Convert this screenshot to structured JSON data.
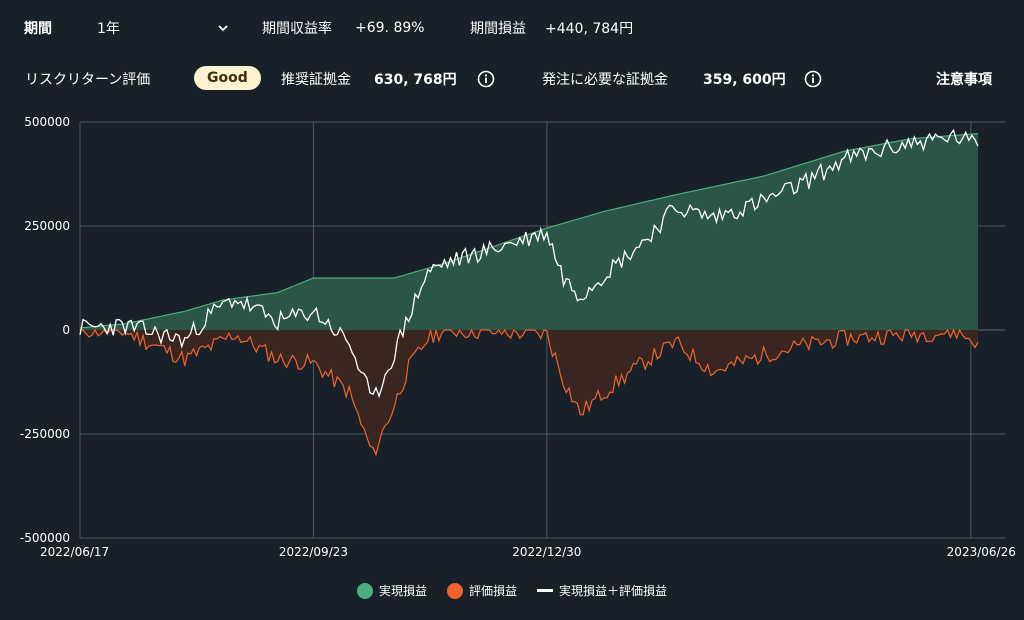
{
  "header": {
    "period_label": "期間",
    "period_value": "1年",
    "return_label": "期間収益率",
    "return_value": "+69. 89%",
    "pl_label": "期間損益",
    "pl_value": "+440, 784円"
  },
  "risk": {
    "label": "リスクリターン評価",
    "badge": "Good",
    "margin_label": "推奨証拠金",
    "margin_value": "630, 768円",
    "order_label": "発注に必要な証拠金",
    "order_value": "359, 600円",
    "notes_label": "注意事項"
  },
  "colors": {
    "background": "#18212a",
    "realized": "#4cae7d",
    "realized_fill": "#2b5647",
    "unrealized": "#f0642a",
    "unrealized_fill": "#3a2620",
    "combined": "#ffffff",
    "badge_bg": "#fdf2cf"
  },
  "chart_data": {
    "type": "area",
    "y_ticks": [
      "500000",
      "250000",
      "0",
      "-250000",
      "-500000"
    ],
    "x_ticks": [
      "2022/06/17",
      "2022/09/23",
      "2022/12/30",
      "2023/06/26"
    ],
    "ylim": [
      -500000,
      500000
    ],
    "xlim": [
      "2022/06/17",
      "2023/06/29"
    ],
    "grid": true,
    "legend_position": "bottom",
    "legend": [
      "実現損益",
      "評価損益",
      "実現損益＋評価損益"
    ],
    "series": [
      {
        "name": "実現損益",
        "x": [
          "2022/06/17",
          "2022/07/06",
          "2022/07/31",
          "2022/08/16",
          "2022/09/08",
          "2022/09/23",
          "2022/10/27",
          "2022/11/17",
          "2022/12/30",
          "2023/01/23",
          "2023/02/22",
          "2023/03/31",
          "2023/05/04",
          "2023/06/01",
          "2023/06/29"
        ],
        "values": [
          5000,
          15000,
          45000,
          72000,
          90000,
          125000,
          125000,
          160000,
          245000,
          285000,
          325000,
          370000,
          430000,
          460000,
          472000
        ]
      },
      {
        "name": "評価損益",
        "x": [
          "2022/06/17",
          "2022/07/06",
          "2022/07/31",
          "2022/08/11",
          "2022/08/21",
          "2022/09/08",
          "2022/09/23",
          "2022/10/08",
          "2022/10/18",
          "2022/10/27",
          "2022/11/02",
          "2022/11/10",
          "2022/11/17",
          "2022/12/30",
          "2023/01/06",
          "2023/01/13",
          "2023/01/23",
          "2023/02/08",
          "2023/02/22",
          "2023/03/10",
          "2023/03/31",
          "2023/04/14",
          "2023/05/04",
          "2023/06/01",
          "2023/06/20",
          "2023/06/29"
        ],
        "values": [
          0,
          -5000,
          -70000,
          -40000,
          -10000,
          -70000,
          -80000,
          -150000,
          -300000,
          -180000,
          -90000,
          -20000,
          0,
          -10000,
          -120000,
          -200000,
          -150000,
          -80000,
          -30000,
          -100000,
          -60000,
          -40000,
          -20000,
          -10000,
          -5000,
          -30000
        ]
      },
      {
        "name": "実現損益＋評価損益",
        "x": [
          "2022/06/17",
          "2022/07/06",
          "2022/07/31",
          "2022/08/11",
          "2022/08/21",
          "2022/09/08",
          "2022/09/23",
          "2022/10/08",
          "2022/10/18",
          "2022/10/27",
          "2022/11/02",
          "2022/11/10",
          "2022/11/17",
          "2022/12/30",
          "2023/01/06",
          "2023/01/13",
          "2023/01/23",
          "2023/02/08",
          "2023/02/22",
          "2023/03/10",
          "2023/03/31",
          "2023/04/14",
          "2023/05/04",
          "2023/06/01",
          "2023/06/20",
          "2023/06/29"
        ],
        "values": [
          5000,
          10000,
          -25000,
          40000,
          75000,
          20000,
          45000,
          -30000,
          -175000,
          -55000,
          35000,
          140000,
          160000,
          235000,
          125000,
          85000,
          135000,
          210000,
          295000,
          270000,
          310000,
          345000,
          410000,
          450000,
          465000,
          442000
        ]
      }
    ]
  }
}
